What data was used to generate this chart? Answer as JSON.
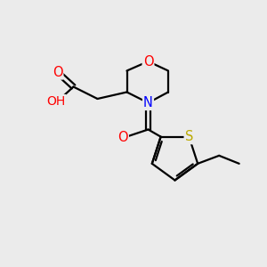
{
  "background_color": "#ebebeb",
  "atom_colors": {
    "O": "#ff0000",
    "N": "#0000ff",
    "S": "#bbaa00",
    "C": "#000000",
    "H": "#606060"
  },
  "bond_lw": 1.6,
  "font_size_atoms": 10.5,
  "xlim": [
    0,
    10
  ],
  "ylim": [
    0,
    10
  ]
}
